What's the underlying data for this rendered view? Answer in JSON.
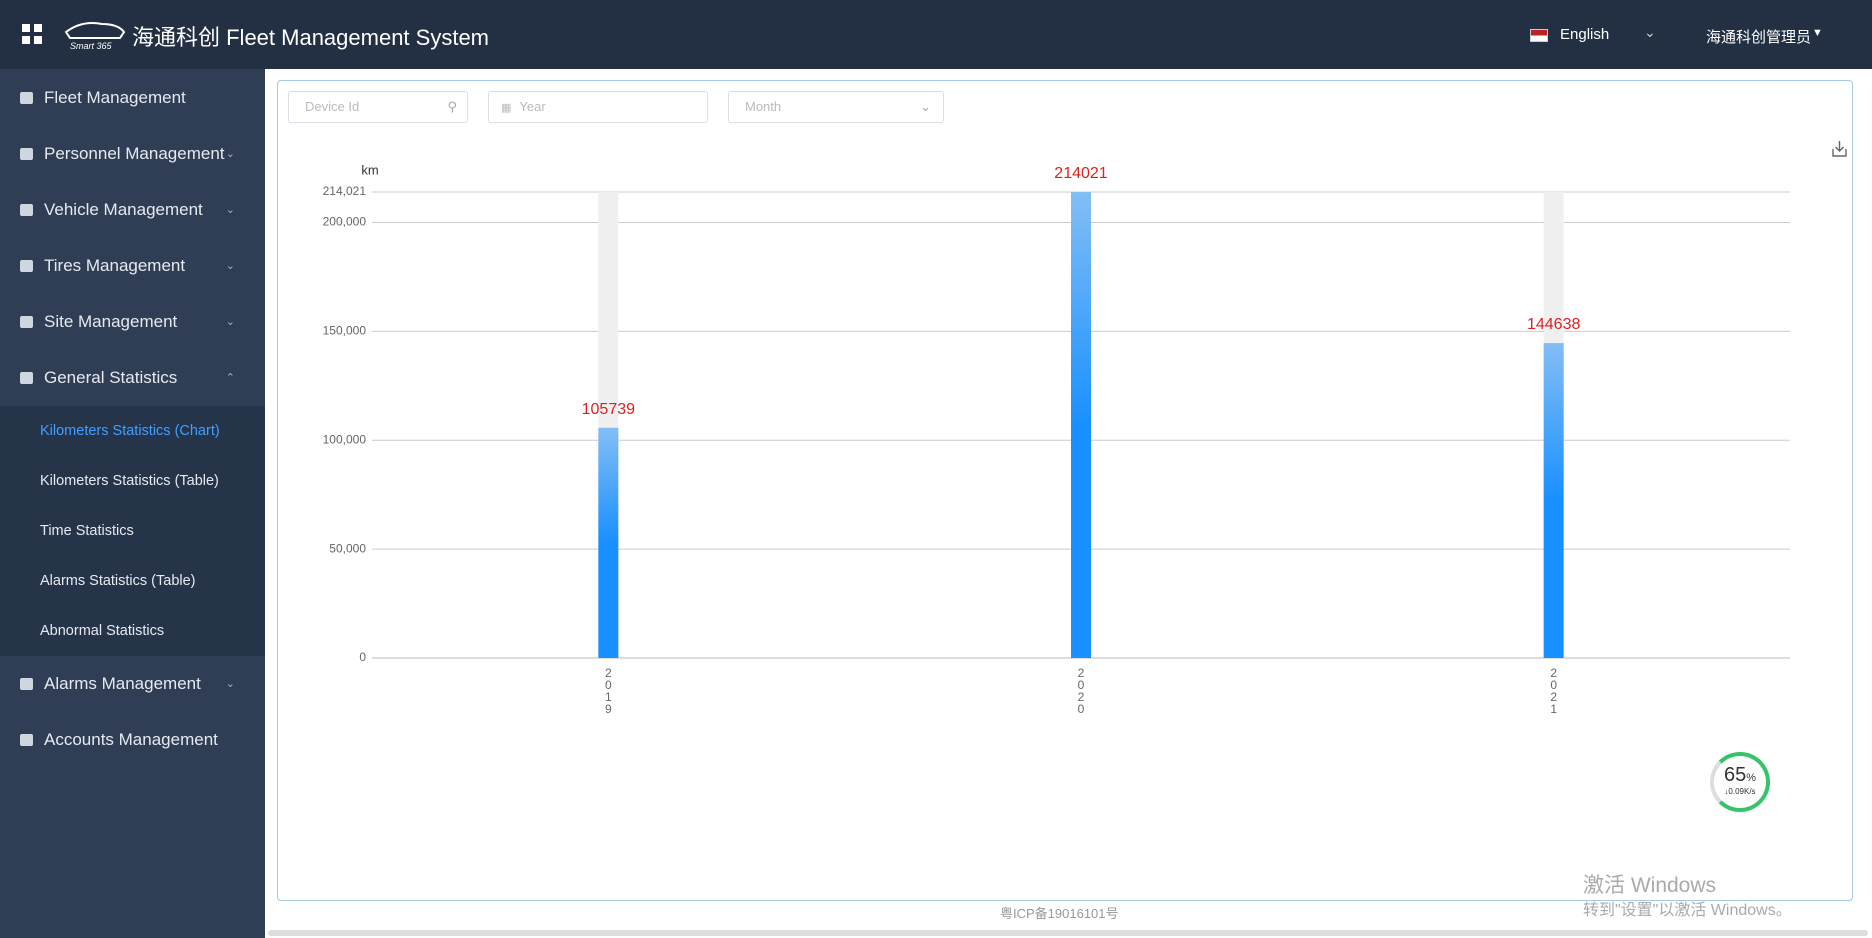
{
  "header": {
    "logo": "Smart 365",
    "title": "海通科创 Fleet Management System",
    "language": "English",
    "user": "海通科创管理员"
  },
  "sidebar": {
    "items": [
      "Fleet Management",
      "Personnel Management",
      "Vehicle Management",
      "Tires Management",
      "Site Management",
      "General Statistics"
    ],
    "submenu": [
      "Kilometers Statistics (Chart)",
      "Kilometers Statistics (Table)",
      "Time Statistics",
      "Alarms Statistics (Table)",
      "Abnormal Statistics"
    ],
    "items_after": [
      "Alarms Management",
      "Accounts Management"
    ]
  },
  "filters": {
    "device_id": "Device Id",
    "year": "Year",
    "month": "Month"
  },
  "chart_data": {
    "type": "bar",
    "y_label": "km",
    "categories": [
      "2019",
      "2020",
      "2021"
    ],
    "values": [
      105739,
      214021,
      144638
    ],
    "color": "#1890ff",
    "value_label_color": "#e02020",
    "ylim": [
      0,
      214021
    ],
    "yticks": [
      0,
      {
        "value": 50000,
        "label": "50,000"
      },
      {
        "value": 100000,
        "label": "100,000"
      },
      {
        "value": 150000,
        "label": "150,000"
      },
      {
        "value": 200000,
        "label": "200,000"
      },
      {
        "value": 214021,
        "label": "214,021"
      }
    ],
    "grid": true
  },
  "footer": "粤ICP备19016101号",
  "overlay": {
    "speed_percent": "65",
    "percent_sign": "%",
    "speed": "↓0.09K/s",
    "watermark_title": "激活 Windows",
    "watermark_text": "转到\"设置\"以激活 Windows。"
  }
}
